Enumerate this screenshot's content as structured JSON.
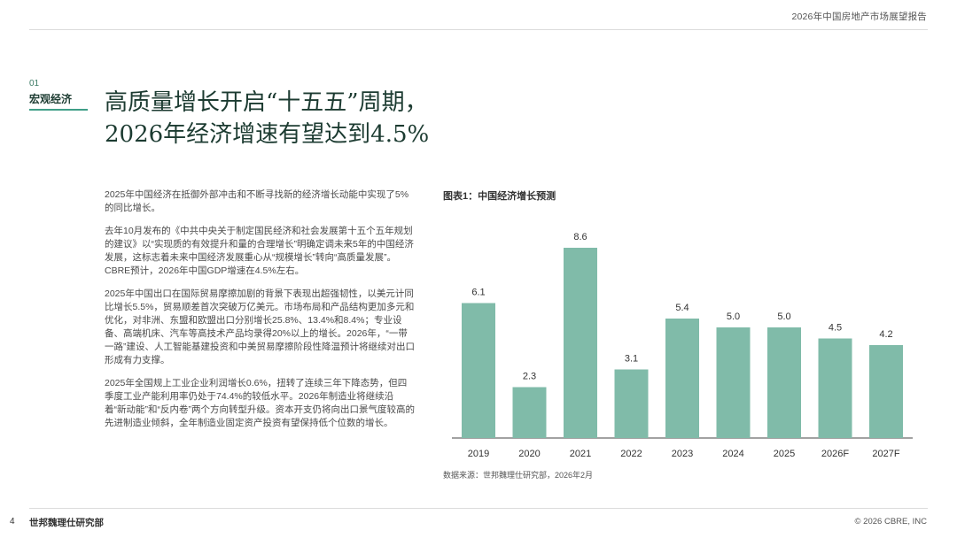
{
  "header": {
    "report_title": "2026年中国房地产市场展望报告"
  },
  "section": {
    "number": "01",
    "name": "宏观经济"
  },
  "headline": {
    "line1": "高质量增长开启“十五五”周期，",
    "line2": "2026年经济增速有望达到4.5%"
  },
  "body": {
    "paragraphs": [
      "2025年中国经济在抵御外部冲击和不断寻找新的经济增长动能中实现了5%的同比增长。",
      "去年10月发布的《中共中央关于制定国民经济和社会发展第十五个五年规划的建议》以“实现质的有效提升和量的合理增长”明确定调未来5年的中国经济发展，这标志着未来中国经济发展重心从“规模增长”转向“高质量发展”。CBRE预计，2026年中国GDP增速在4.5%左右。",
      "2025年中国出口在国际贸易摩擦加剧的背景下表现出超强韧性，以美元计同比增长5.5%，贸易顺差首次突破万亿美元。市场布局和产品结构更加多元和优化，对非洲、东盟和欧盟出口分别增长25.8%、13.4%和8.4%；专业设备、高端机床、汽车等高技术产品均录得20%以上的增长。2026年，“一带一路”建设、人工智能基建投资和中美贸易摩擦阶段性降温预计将继续对出口形成有力支撑。",
      "2025年全国规上工业企业利润增长0.6%，扭转了连续三年下降态势，但四季度工业产能利用率仍处于74.4%的较低水平。2026年制造业将继续沿着“新动能”和“反内卷”两个方向转型升级。资本开支仍将向出口景气度较高的先进制造业倾斜，全年制造业固定资产投资有望保持低个位数的增长。"
    ]
  },
  "chart": {
    "title": "图表1：中国经济增长预测",
    "source": "数据来源：世邦魏理仕研究部，2026年2月",
    "bar_color": "#80bba9"
  },
  "chart_data": {
    "type": "bar",
    "title": "图表1：中国经济增长预测",
    "categories": [
      "2019",
      "2020",
      "2021",
      "2022",
      "2023",
      "2024",
      "2025",
      "2026F",
      "2027F"
    ],
    "values": [
      6.1,
      2.3,
      8.6,
      3.1,
      5.4,
      5.0,
      5.0,
      4.5,
      4.2
    ],
    "data_labels": [
      "6.1",
      "2.3",
      "8.6",
      "3.1",
      "5.4",
      "5.0",
      "5.0",
      "4.5",
      "4.2"
    ],
    "xlabel": "",
    "ylabel": "",
    "ylim": [
      0,
      9
    ],
    "grid": false,
    "legend": "none"
  },
  "footer": {
    "page": "4",
    "org": "世邦魏理仕研究部",
    "copyright": "© 2026 CBRE, INC"
  }
}
